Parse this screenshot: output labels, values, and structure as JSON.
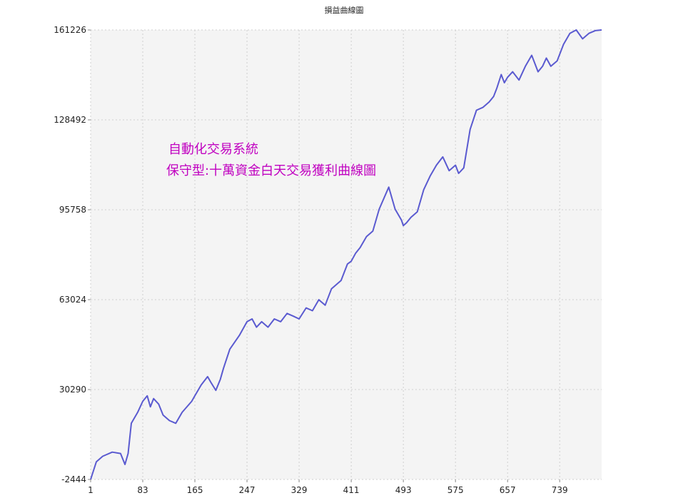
{
  "chart_data": {
    "type": "line",
    "title": "損益曲線圖",
    "xlabel": "",
    "ylabel": "",
    "annotations": [
      "自動化交易系統",
      "保守型:十萬資金白天交易獲利曲線圖"
    ],
    "x_ticks": [
      "1",
      "83",
      "165",
      "247",
      "329",
      "411",
      "493",
      "575",
      "657",
      "739"
    ],
    "y_ticks": [
      "-2444",
      "30290",
      "63024",
      "95758",
      "128492",
      "161226"
    ],
    "xlim": [
      1,
      805
    ],
    "ylim": [
      -2444,
      161226
    ],
    "grid": true,
    "colors": {
      "line": "#5a5ad0",
      "background": "#f4f4f4",
      "grid": "#cfcfcf",
      "annotation": "#c000c0"
    },
    "series": [
      {
        "x": [
          1,
          10,
          20,
          35,
          48,
          55,
          60,
          65,
          75,
          83,
          90,
          95,
          100,
          108,
          115,
          125,
          135,
          145,
          160,
          165,
          175,
          185,
          190,
          198,
          205,
          210,
          220,
          235,
          247,
          255,
          262,
          270,
          280,
          290,
          300,
          310,
          320,
          329,
          340,
          350,
          360,
          370,
          380,
          395,
          405,
          411,
          418,
          425,
          435,
          445,
          455,
          470,
          480,
          490,
          493,
          498,
          505,
          515,
          525,
          535,
          545,
          555,
          565,
          575,
          580,
          588,
          598,
          608,
          618,
          628,
          635,
          640,
          647,
          652,
          657,
          665,
          675,
          685,
          695,
          705,
          712,
          718,
          725,
          735,
          745,
          755,
          765,
          775,
          785,
          795,
          805
        ],
        "y": [
          -2444,
          4000,
          6000,
          7500,
          7000,
          3000,
          7000,
          18000,
          22000,
          26000,
          28000,
          24000,
          27000,
          25000,
          21000,
          19000,
          18000,
          22000,
          26000,
          28000,
          32000,
          35000,
          33000,
          30000,
          34000,
          38000,
          45000,
          50000,
          55000,
          56000,
          53000,
          55000,
          53000,
          56000,
          55000,
          58000,
          57000,
          56000,
          60000,
          59000,
          63000,
          61000,
          67000,
          70000,
          76000,
          77000,
          80000,
          82000,
          86000,
          88000,
          96000,
          104000,
          96000,
          92000,
          90000,
          91000,
          93000,
          95000,
          103000,
          108000,
          112000,
          115000,
          110000,
          112000,
          109000,
          111000,
          125000,
          132000,
          133000,
          135000,
          137000,
          140000,
          145000,
          142000,
          144000,
          146000,
          143000,
          148000,
          152000,
          146000,
          148000,
          151000,
          148000,
          150000,
          156000,
          160000,
          161226,
          158000,
          160000,
          161000,
          161226
        ]
      }
    ]
  }
}
